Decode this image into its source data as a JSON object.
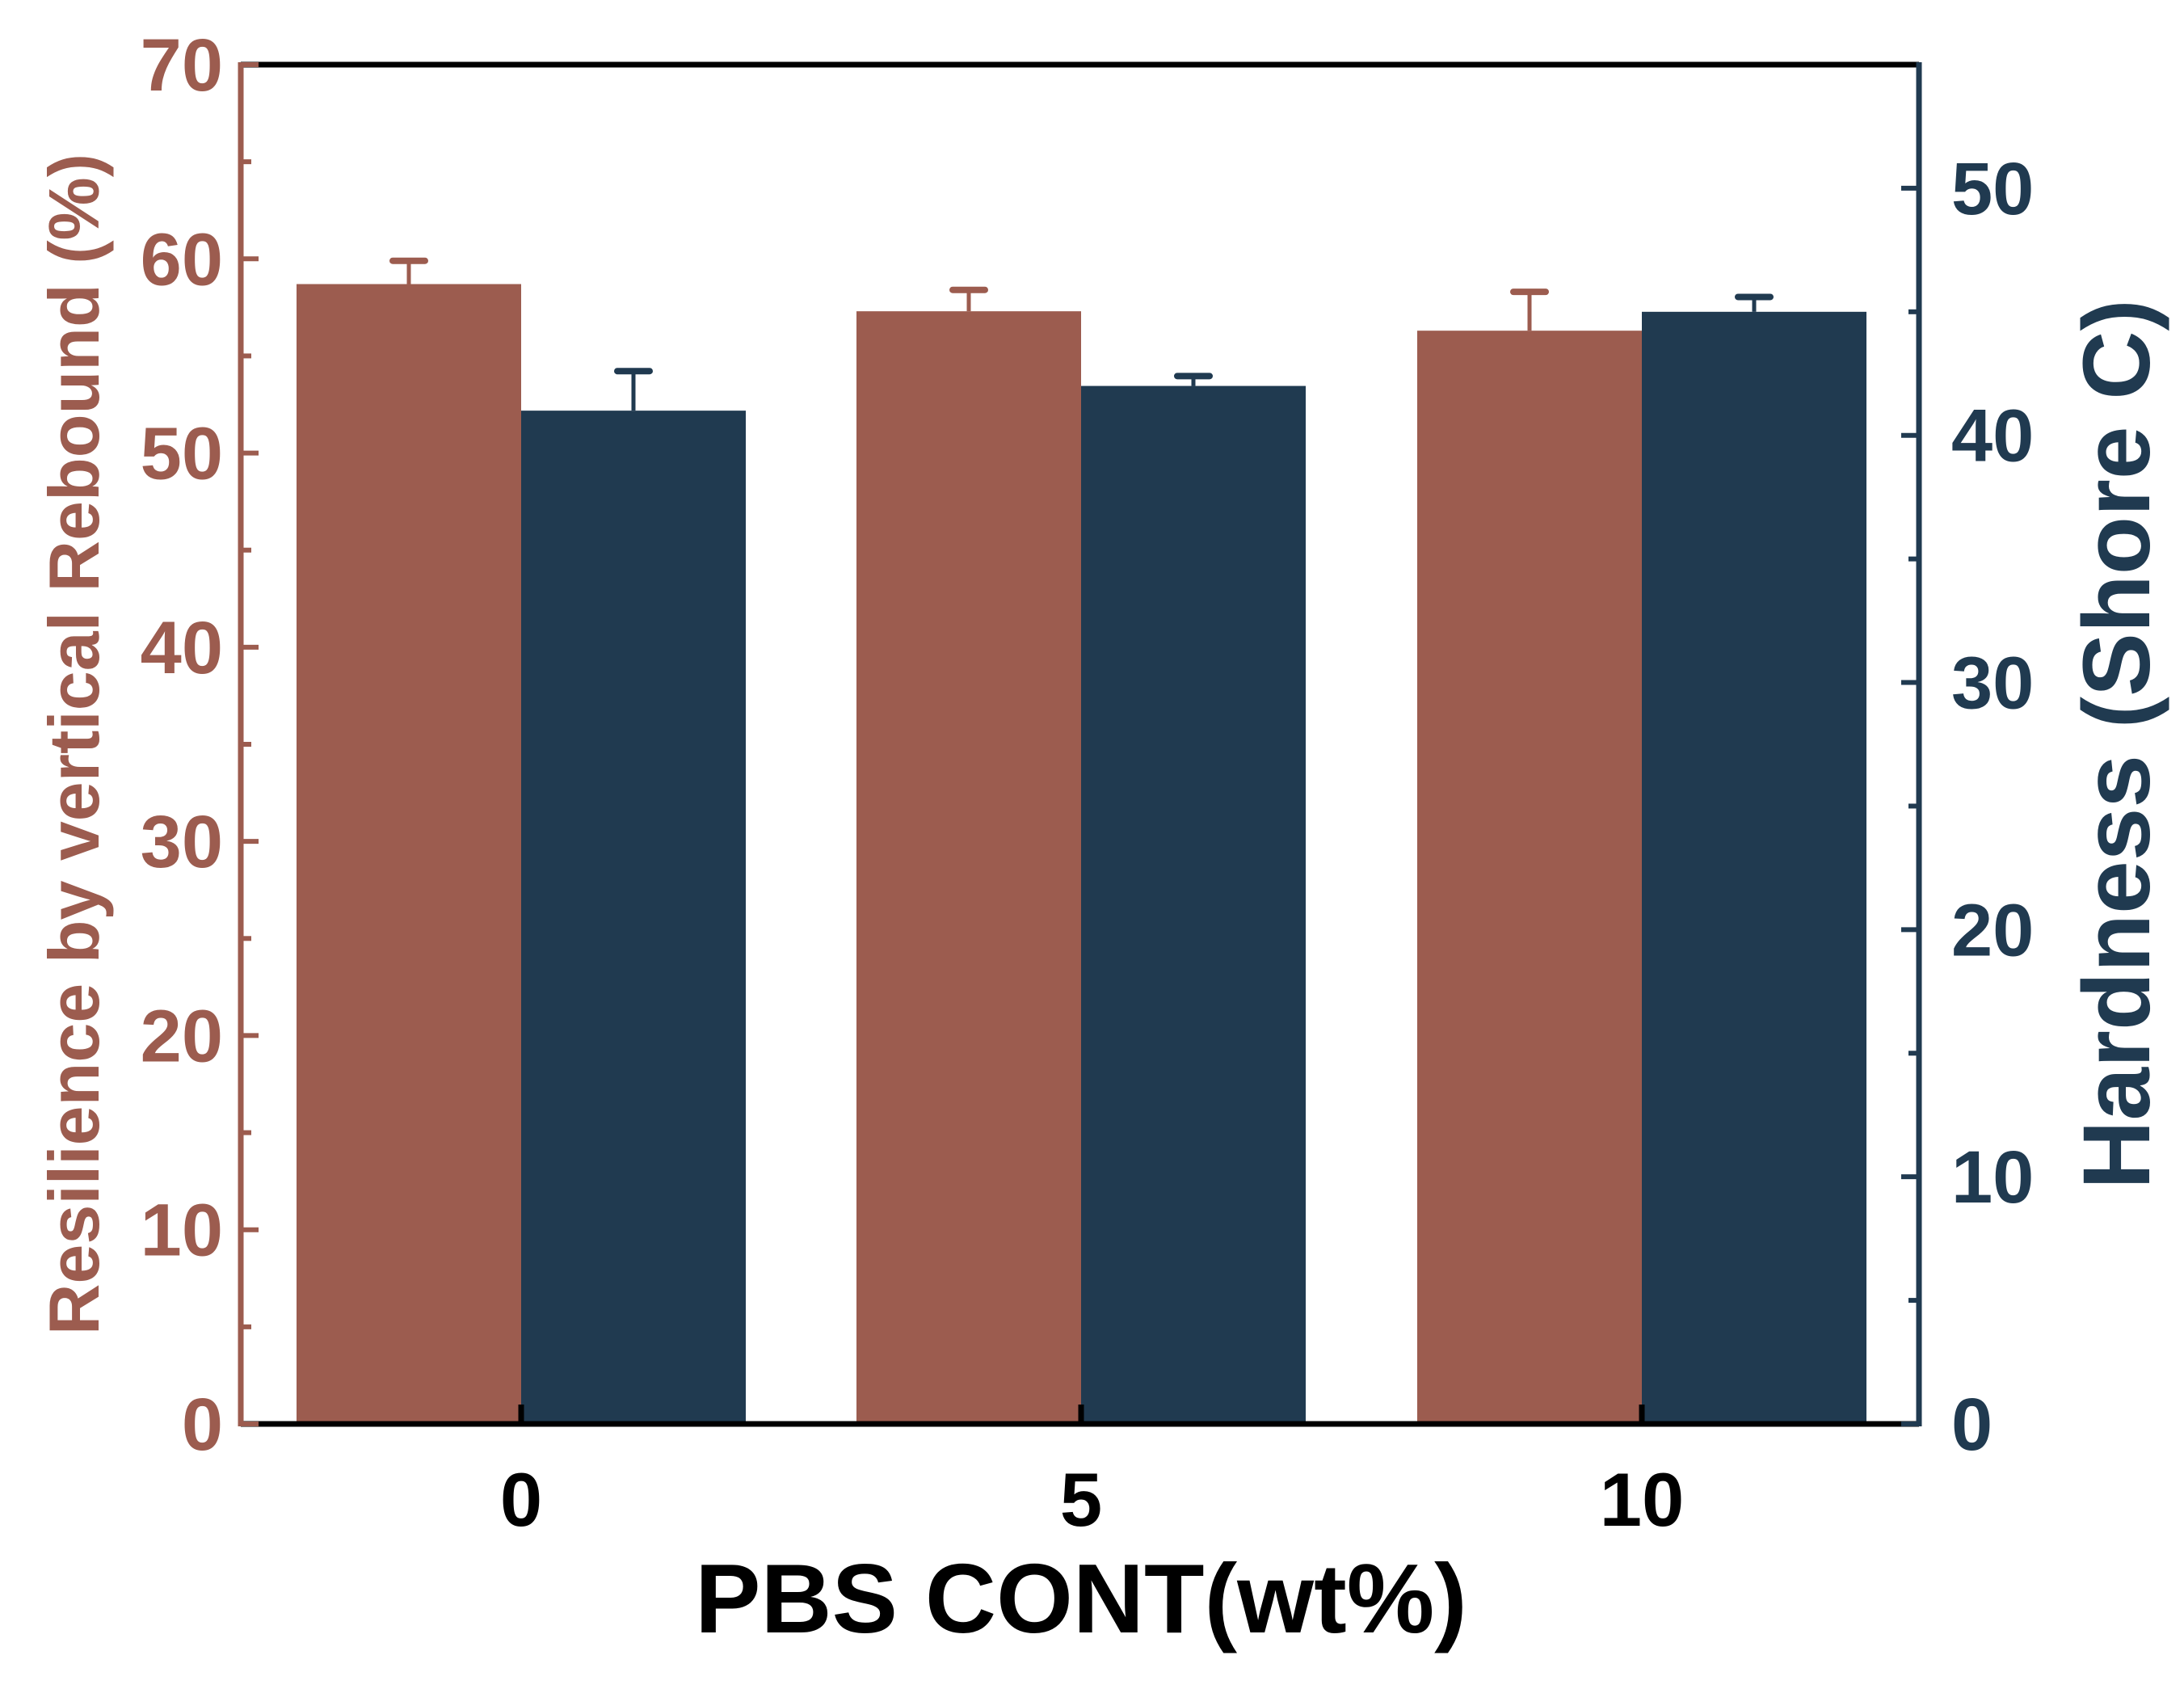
{
  "colors": {
    "left_axis": "#9c5c4f",
    "right_axis": "#203a50",
    "frame": "#000000",
    "background": "#ffffff"
  },
  "chart_data": {
    "type": "bar",
    "title": "",
    "xlabel": "PBS CONT(wt%)",
    "categories": [
      "0",
      "5",
      "10"
    ],
    "y_left": {
      "label": "Resilience by vertical Rebound (%)",
      "range": [
        0,
        70
      ],
      "ticks": [
        "0",
        "10",
        "20",
        "30",
        "40",
        "50",
        "60",
        "70"
      ]
    },
    "y_right": {
      "label": "Hardness (Shore C)",
      "range": [
        0,
        55
      ],
      "ticks": [
        "0",
        "10",
        "20",
        "30",
        "40",
        "50"
      ]
    },
    "series": [
      {
        "axis": "left",
        "color": "#9c5c4f",
        "values": [
          58.7,
          57.3,
          56.3
        ],
        "errors": [
          1.2,
          1.1,
          2.0
        ]
      },
      {
        "axis": "right",
        "color": "#203a50",
        "values": [
          41.0,
          42.0,
          45.0
        ],
        "errors": [
          1.6,
          0.4,
          0.6
        ]
      }
    ],
    "legend": "none",
    "grid": false
  }
}
